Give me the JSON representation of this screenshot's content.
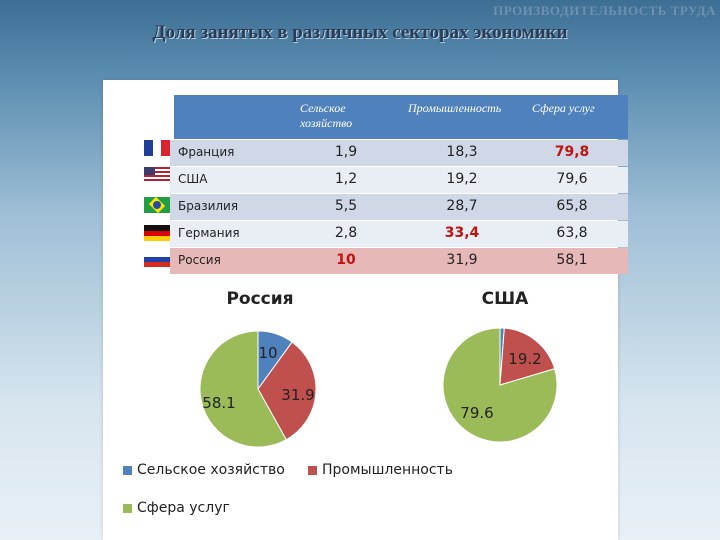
{
  "header": {
    "corner_text": "ПРОИЗВОДИТЕЛЬНОСТЬ ТРУДА",
    "title": "Доля занятых в различных секторах экономики"
  },
  "table": {
    "columns": [
      "Сельское хозяйство",
      "Промышленность",
      "Сфера услуг"
    ],
    "rows": [
      {
        "country": "Франция",
        "values": [
          "1,9",
          "18,3",
          "79,8"
        ]
      },
      {
        "country": "США",
        "values": [
          "1,2",
          "19,2",
          "79,6"
        ]
      },
      {
        "country": "Бразилия",
        "values": [
          "5,5",
          "28,7",
          "65,8"
        ]
      },
      {
        "country": "Германия",
        "values": [
          "2,8",
          "33,4",
          "63,8"
        ]
      },
      {
        "country": "Россия",
        "values": [
          "10",
          "31,9",
          "58,1"
        ]
      }
    ]
  },
  "chart_data": [
    {
      "type": "pie",
      "title": "Россия",
      "labels": [
        "Сельское хозяйство",
        "Промышленность",
        "Сфера услуг"
      ],
      "values": [
        10,
        31.9,
        58.1
      ],
      "data_labels": [
        "10",
        "31.9",
        "58.1"
      ],
      "colors": [
        "#4f81bd",
        "#c0504d",
        "#9bbb59"
      ]
    },
    {
      "type": "pie",
      "title": "США",
      "labels": [
        "Сельское хозяйство",
        "Промышленность",
        "Сфера услуг"
      ],
      "values": [
        1.2,
        19.2,
        79.6
      ],
      "data_labels": [
        "",
        "19.2",
        "79.6"
      ],
      "colors": [
        "#4f81bd",
        "#c0504d",
        "#9bbb59"
      ]
    }
  ],
  "legend": {
    "items": [
      {
        "label": "Сельское хозяйство",
        "color": "#4f81bd"
      },
      {
        "label": "Промышленность",
        "color": "#c0504d"
      },
      {
        "label": "Сфера услуг",
        "color": "#9bbb59"
      }
    ]
  }
}
